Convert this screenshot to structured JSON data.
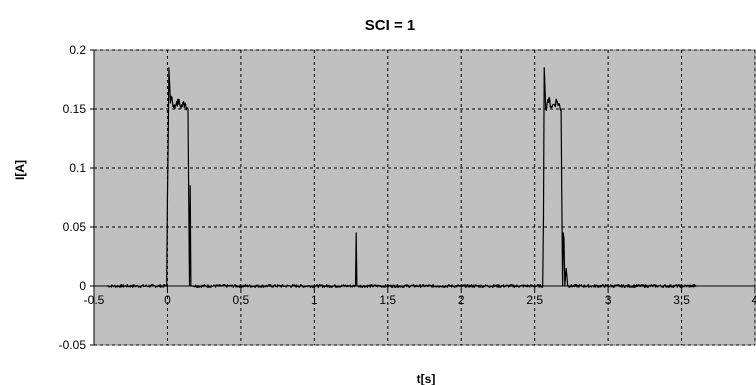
{
  "chart_data": {
    "type": "line",
    "title": "SCI = 1",
    "xlabel": "t[s]",
    "ylabel": "I[A]",
    "xlim": [
      -0.5,
      4
    ],
    "ylim": [
      -0.05,
      0.2
    ],
    "x_ticks": [
      -0.5,
      0,
      0.5,
      1,
      1.5,
      2,
      2.5,
      3,
      3.5,
      4
    ],
    "x_tick_labels": [
      "-0.5",
      "0",
      "0.5",
      "1",
      "1.5",
      "2",
      "2.5",
      "3",
      "3.5",
      "4"
    ],
    "y_ticks": [
      -0.05,
      0,
      0.05,
      0.1,
      0.15,
      0.2
    ],
    "y_tick_labels": [
      "-0.05",
      "0",
      "0.05",
      "0.1",
      "0.15",
      "0.2"
    ],
    "grid": true,
    "legend": "none",
    "colors": {
      "plot_background": "#c0c0c0",
      "line": "#000000",
      "grid": "#000000"
    },
    "series": [
      {
        "x": [
          -0.41,
          -0.005,
          0.0,
          0.01,
          0.02,
          0.03,
          0.05,
          0.08,
          0.1,
          0.12,
          0.14,
          0.15,
          0.155,
          0.16,
          0.165,
          0.17,
          0.18,
          1.28,
          1.285,
          1.29,
          1.295,
          1.3,
          2.555,
          2.56,
          2.565,
          2.575,
          2.59,
          2.62,
          2.65,
          2.68,
          2.69,
          2.695,
          2.7,
          2.705,
          2.715,
          2.725,
          3.6
        ],
        "y": [
          0.0,
          0.0,
          0.07,
          0.185,
          0.155,
          0.16,
          0.15,
          0.158,
          0.152,
          0.155,
          0.15,
          0.0,
          0.085,
          0.0,
          0.0,
          0.0,
          0.0,
          0.0,
          0.045,
          0.0,
          0.0,
          0.0,
          0.0,
          0.06,
          0.185,
          0.15,
          0.158,
          0.152,
          0.157,
          0.15,
          0.0,
          0.045,
          0.04,
          0.0,
          0.015,
          0.0,
          0.0
        ]
      }
    ]
  }
}
